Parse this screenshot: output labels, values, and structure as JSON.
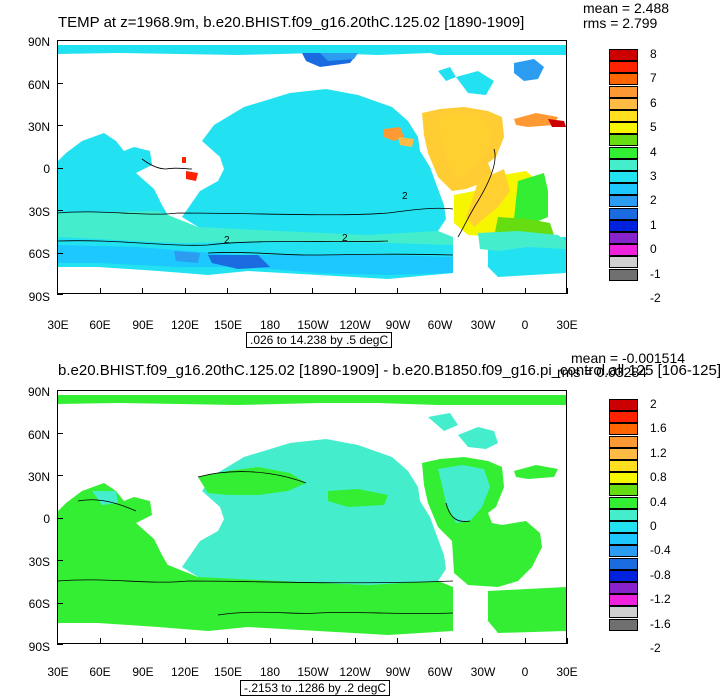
{
  "panels": [
    {
      "title": "TEMP at z=1968.9m, b.e20.BHIST.f09_g16.20thC.125.02 [1890-1909]",
      "mean": "mean = 2.488",
      "rms": "rms = 2.799",
      "subtitle": ".026 to 14.238 by .5 degC",
      "lat_labels": [
        "90N",
        "60N",
        "30N",
        "0",
        "30S",
        "60S",
        "90S"
      ],
      "lon_labels": [
        "30E",
        "60E",
        "90E",
        "120E",
        "150E",
        "180",
        "150W",
        "120W",
        "90W",
        "60W",
        "30W",
        "0",
        "30E"
      ],
      "colorbar_labels": [
        "8",
        "7",
        "6",
        "5",
        "4",
        "3",
        "2",
        "1",
        "0",
        "-1",
        "-2"
      ],
      "colorbar_colors": [
        "#cc0000",
        "#ff2200",
        "#ff6600",
        "#ff9933",
        "#ffbb44",
        "#ffe020",
        "#f6f600",
        "#66dd11",
        "#33ee33",
        "#44eecc",
        "#22e2f2",
        "#1cc8ff",
        "#2b9cf0",
        "#1a6be0",
        "#0022dd",
        "#8822cc",
        "#ee22dd",
        "#d0d0d0",
        "#707070"
      ],
      "contour_labels": [
        "2",
        "2",
        "2"
      ]
    },
    {
      "title": "b.e20.BHIST.f09_g16.20thC.125.02 [1890-1909] - b.e20.B1850.f09_g16.pi_control.all.125 [106-125]",
      "mean": "mean = -0.001514",
      "rms": "rms = 0.03284",
      "subtitle": "-.2153 to .1286 by .2 degC",
      "lat_labels": [
        "90N",
        "60N",
        "30N",
        "0",
        "30S",
        "60S",
        "90S"
      ],
      "lon_labels": [
        "30E",
        "60E",
        "90E",
        "120E",
        "150E",
        "180",
        "150W",
        "120W",
        "90W",
        "60W",
        "30W",
        "0",
        "30E"
      ],
      "colorbar_labels": [
        "2",
        "1.6",
        "1.2",
        "0.8",
        "0.4",
        "0",
        "-0.4",
        "-0.8",
        "-1.2",
        "-1.6",
        "-2"
      ],
      "colorbar_colors": [
        "#cc0000",
        "#ff2200",
        "#ff6600",
        "#ff9933",
        "#ffbb44",
        "#ffe020",
        "#f6f600",
        "#66dd11",
        "#33ee33",
        "#44eecc",
        "#22e2f2",
        "#1cc8ff",
        "#2b9cf0",
        "#1a6be0",
        "#0022dd",
        "#8822cc",
        "#ee22dd",
        "#d0d0d0",
        "#707070"
      ]
    }
  ]
}
